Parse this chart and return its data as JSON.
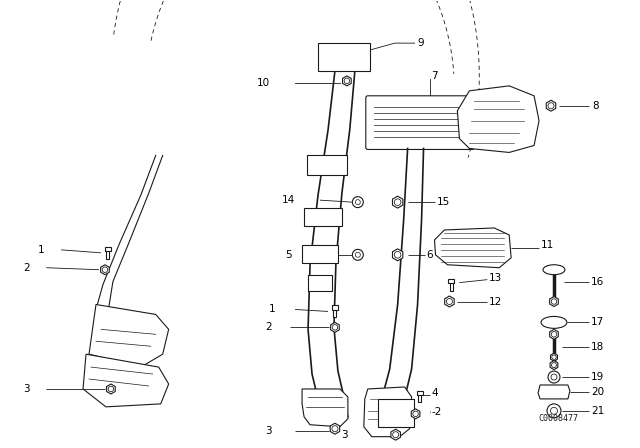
{
  "bg_color": "#ffffff",
  "line_color": "#1a1a1a",
  "diagram_code": "C0008477",
  "fig_w": 6.4,
  "fig_h": 4.48,
  "dpi": 100
}
